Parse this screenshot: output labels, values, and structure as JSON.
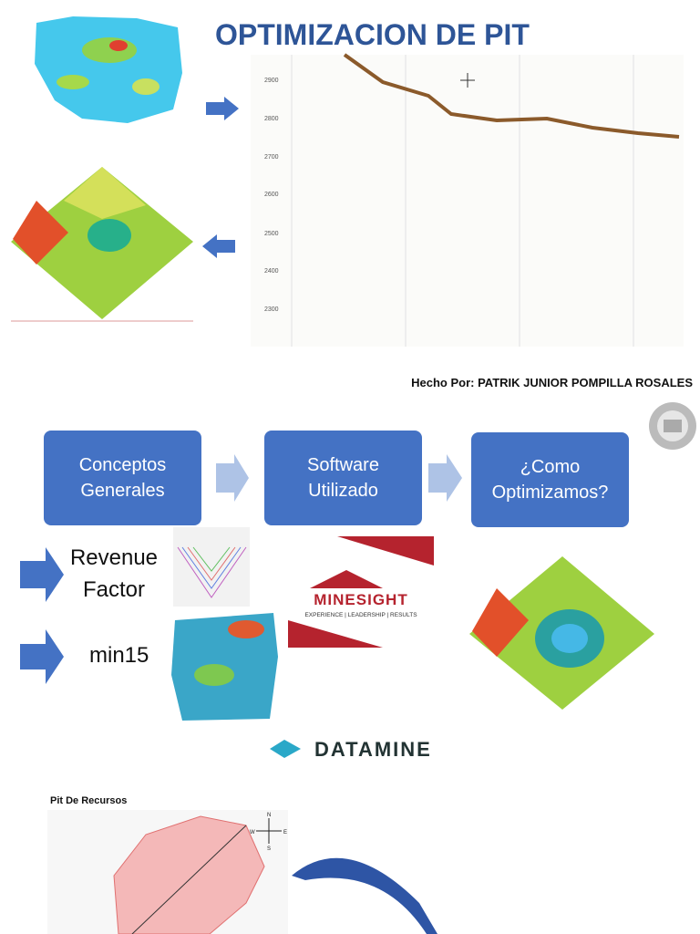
{
  "header": {
    "title": "OPTIMIZACION DE PIT",
    "author": "Hecho Por: PATRIK JUNIOR POMPILLA ROSALES"
  },
  "section": {
    "elevations": [
      "2900",
      "2800",
      "2700",
      "2600",
      "2500",
      "2400",
      "2300"
    ]
  },
  "flow": {
    "steps": [
      "Conceptos Generales",
      "Software Utilizado",
      "¿Como Optimizamos?"
    ]
  },
  "items": [
    "Revenue Factor",
    "min15"
  ],
  "logos": {
    "minesight": "MINESIGHT",
    "minesight_tagline": "EXPERIENCE | LEADERSHIP | RESULTS",
    "datamine": "DATAMINE"
  },
  "pit": {
    "title": "Pit De Recursos",
    "compass": [
      "N",
      "E",
      "S",
      "W"
    ]
  }
}
